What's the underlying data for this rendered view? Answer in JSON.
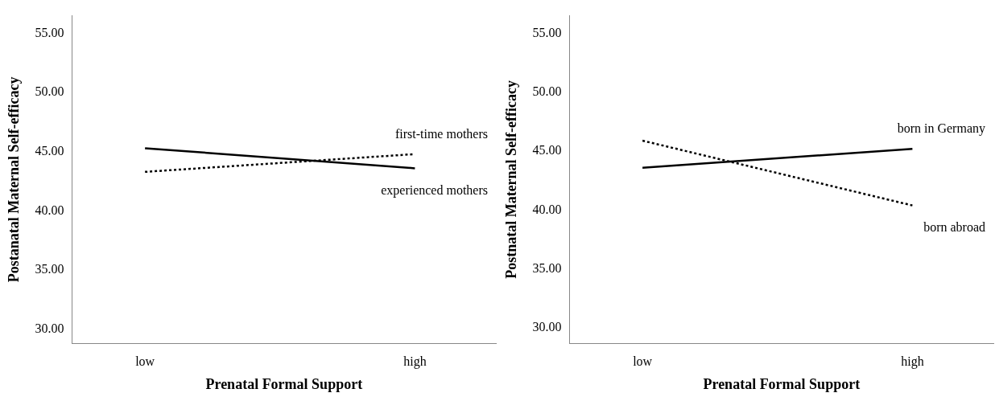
{
  "chart_data": [
    {
      "type": "line",
      "xlabel": "Prenatal Formal Support",
      "ylabel": "Postanatal Maternal Self-efficacy",
      "categories": [
        "low",
        "high"
      ],
      "ylim": [
        28.8,
        56.5
      ],
      "yticks": [
        {
          "value": 30,
          "label": "30.00"
        },
        {
          "value": 35,
          "label": "35.00"
        },
        {
          "value": 40,
          "label": "40.00"
        },
        {
          "value": 45,
          "label": "45.00"
        },
        {
          "value": 50,
          "label": "50.00"
        },
        {
          "value": 55,
          "label": "55.00"
        }
      ],
      "grid": false,
      "legend": false,
      "marker": "none",
      "series": [
        {
          "name": "experienced mothers",
          "color": "#000000",
          "line_style": "solid",
          "values": [
            45.3,
            43.6
          ]
        },
        {
          "name": "first-time mothers",
          "color": "#000000",
          "line_style": "dotted",
          "values": [
            43.3,
            44.8
          ]
        }
      ]
    },
    {
      "type": "line",
      "xlabel": "Prenatal Formal Support",
      "ylabel": "Postnatal Maternal Self-efficacy",
      "categories": [
        "low",
        "high"
      ],
      "ylim": [
        28.7,
        56.5
      ],
      "yticks": [
        {
          "value": 30,
          "label": "30.00"
        },
        {
          "value": 35,
          "label": "35.00"
        },
        {
          "value": 40,
          "label": "40.00"
        },
        {
          "value": 45,
          "label": "45.00"
        },
        {
          "value": 50,
          "label": "50.00"
        },
        {
          "value": 55,
          "label": "55.00"
        }
      ],
      "grid": false,
      "legend": false,
      "marker": "none",
      "series": [
        {
          "name": "born in Germany",
          "color": "#000000",
          "line_style": "solid",
          "values": [
            43.6,
            45.2
          ]
        },
        {
          "name": "born abroad",
          "color": "#000000",
          "line_style": "dotted",
          "values": [
            45.9,
            40.4
          ]
        }
      ]
    }
  ]
}
